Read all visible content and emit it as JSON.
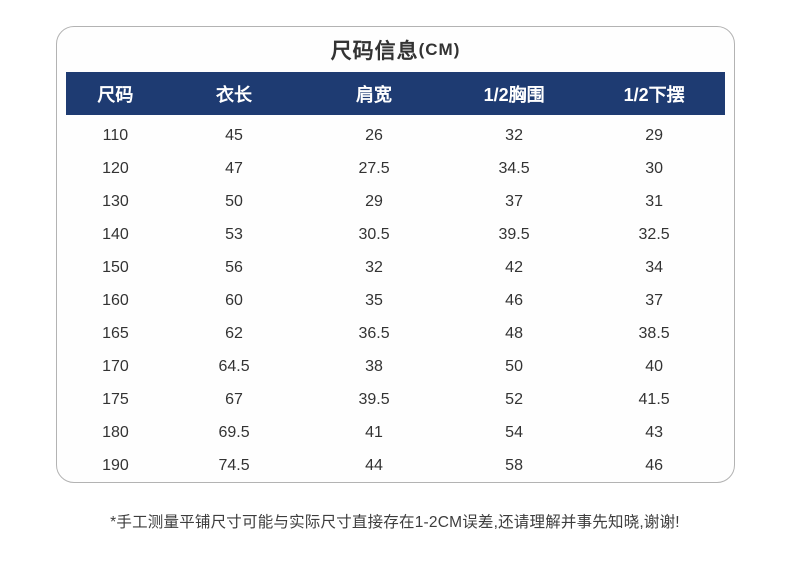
{
  "chart_data": {
    "type": "table",
    "title": "尺码信息",
    "title_unit": "(CM)",
    "columns": [
      "尺码",
      "衣长",
      "肩宽",
      "1/2胸围",
      "1/2下摆"
    ],
    "rows": [
      [
        "110",
        "45",
        "26",
        "32",
        "29"
      ],
      [
        "120",
        "47",
        "27.5",
        "34.5",
        "30"
      ],
      [
        "130",
        "50",
        "29",
        "37",
        "31"
      ],
      [
        "140",
        "53",
        "30.5",
        "39.5",
        "32.5"
      ],
      [
        "150",
        "56",
        "32",
        "42",
        "34"
      ],
      [
        "160",
        "60",
        "35",
        "46",
        "37"
      ],
      [
        "165",
        "62",
        "36.5",
        "48",
        "38.5"
      ],
      [
        "170",
        "64.5",
        "38",
        "50",
        "40"
      ],
      [
        "175",
        "67",
        "39.5",
        "52",
        "41.5"
      ],
      [
        "180",
        "69.5",
        "41",
        "54",
        "43"
      ],
      [
        "190",
        "74.5",
        "44",
        "58",
        "46"
      ]
    ],
    "unit": "CM",
    "layout": "5 columns, header row navy background with white bold text, no gridlines between data rows"
  },
  "footer_note": "*手工测量平铺尺寸可能与实际尺寸直接存在1-2CM误差,还请理解并事先知晓,谢谢!",
  "colors": {
    "header_bg": "#1e3b72",
    "header_text": "#ffffff",
    "body_text": "#333333",
    "card_border": "#b3b3b3",
    "page_bg": "#ffffff"
  }
}
